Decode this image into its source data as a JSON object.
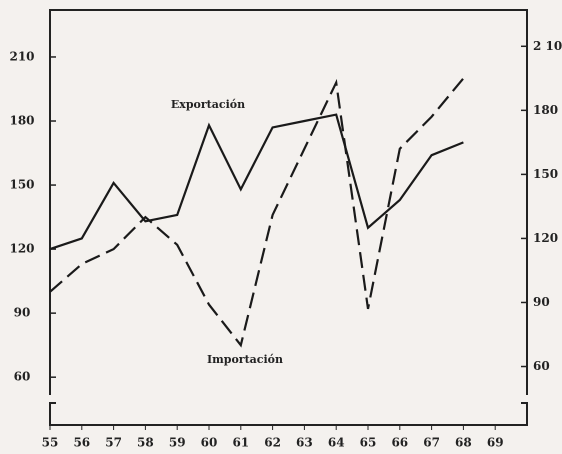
{
  "chart_data": {
    "type": "line",
    "x": [
      55,
      56,
      57,
      58,
      59,
      60,
      61,
      62,
      63,
      64,
      65,
      66,
      67,
      68
    ],
    "series": [
      {
        "name": "Exportación",
        "color": "#1a1a1a",
        "dash": "solid",
        "values": [
          120,
          125,
          151,
          133,
          136,
          178,
          148,
          177,
          180,
          183,
          130,
          143,
          164,
          170
        ]
      },
      {
        "name": "Importación",
        "color": "#1a1a1a",
        "dash": "dashed",
        "axis": "y2",
        "values": [
          95,
          108,
          115,
          130,
          117,
          89,
          70,
          131,
          162,
          193,
          87,
          162,
          177,
          195
        ]
      }
    ],
    "xlim": [
      55,
      70
    ],
    "xticks": [
      55,
      56,
      57,
      58,
      59,
      60,
      61,
      62,
      63,
      64,
      65,
      66,
      67,
      68,
      69
    ],
    "ylim": [
      54,
      232
    ],
    "yticks": [
      60,
      90,
      120,
      150,
      180,
      210
    ],
    "y2lim": [
      49,
      227
    ],
    "y2ticks": [
      60,
      90,
      120,
      150,
      180,
      {
        "value": 210,
        "label": "2 10"
      }
    ]
  }
}
